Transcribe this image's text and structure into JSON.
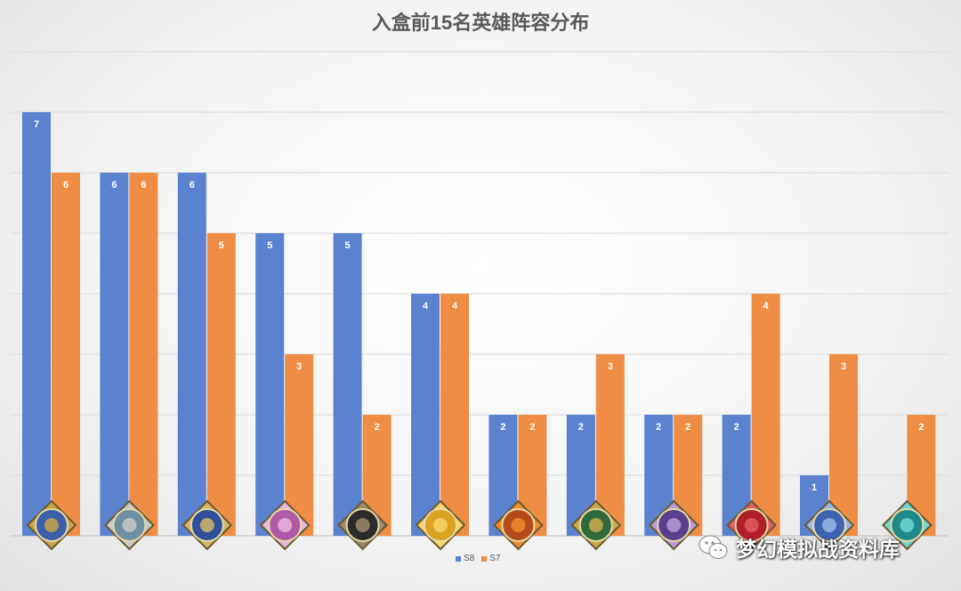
{
  "chart_data": {
    "type": "bar",
    "title": "入盒前15名英雄阵容分布",
    "categories": [
      "",
      "",
      "",
      "",
      "",
      "",
      "",
      "",
      "",
      "",
      "",
      ""
    ],
    "category_icons": [
      "helmet-icon",
      "eye-icon",
      "winged-shield-icon",
      "crown-icon",
      "skull-icon",
      "sun-icon",
      "comet-icon",
      "sword-shield-icon",
      "crossed-tools-icon",
      "heart-figure-icon",
      "vortex-icon",
      "hexagon-crystal-icon"
    ],
    "series": [
      {
        "name": "S8",
        "values": [
          7,
          6,
          6,
          5,
          5,
          4,
          2,
          2,
          2,
          2,
          1,
          0
        ],
        "color": "#5b82cf"
      },
      {
        "name": "S7",
        "values": [
          6,
          6,
          5,
          3,
          2,
          4,
          2,
          3,
          2,
          4,
          3,
          2
        ],
        "color": "#ef8d45"
      }
    ],
    "ylim": [
      0,
      8
    ],
    "grid": true,
    "legend": "bottom-center",
    "data_labels": true
  },
  "watermark": {
    "text": "梦幻模拟战资料库",
    "icon": "wechat-icon"
  }
}
